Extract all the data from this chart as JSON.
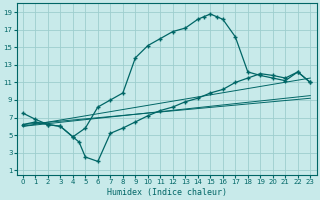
{
  "xlabel": "Humidex (Indice chaleur)",
  "bg_color": "#c8eaea",
  "grid_color": "#9ecece",
  "line_color": "#006666",
  "xlim": [
    -0.5,
    23.5
  ],
  "ylim": [
    0.5,
    20
  ],
  "xticks": [
    0,
    1,
    2,
    3,
    4,
    5,
    6,
    7,
    8,
    9,
    10,
    11,
    12,
    13,
    14,
    15,
    16,
    17,
    18,
    19,
    20,
    21,
    22,
    23
  ],
  "yticks": [
    1,
    3,
    5,
    7,
    9,
    11,
    13,
    15,
    17,
    19
  ],
  "curve1_x": [
    0,
    1,
    2,
    3,
    4,
    5,
    6,
    7,
    8,
    9,
    10,
    11,
    12,
    13,
    14,
    14.5,
    15,
    15.5,
    16,
    17,
    18,
    19,
    20,
    21,
    22,
    23
  ],
  "curve1_y": [
    7.5,
    6.8,
    6.2,
    6.0,
    4.8,
    5.8,
    8.2,
    9.0,
    9.8,
    13.8,
    15.2,
    16.0,
    16.8,
    17.2,
    18.2,
    18.5,
    18.8,
    18.5,
    18.2,
    16.2,
    12.2,
    11.8,
    11.5,
    11.2,
    12.2,
    11.0
  ],
  "curve2_x": [
    0,
    1,
    2,
    3,
    4,
    4.5,
    5,
    6,
    7,
    8,
    9,
    10,
    11,
    12,
    13,
    14,
    15,
    16,
    17,
    18,
    19,
    20,
    21,
    22,
    23
  ],
  "curve2_y": [
    6.2,
    6.5,
    6.2,
    6.0,
    4.8,
    4.2,
    2.5,
    2.0,
    5.2,
    5.8,
    6.5,
    7.2,
    7.8,
    8.2,
    8.8,
    9.2,
    9.8,
    10.2,
    11.0,
    11.5,
    12.0,
    11.8,
    11.5,
    12.2,
    11.0
  ],
  "line1_x": [
    0,
    23
  ],
  "line1_y": [
    6.0,
    9.5
  ],
  "line2_x": [
    0,
    23
  ],
  "line2_y": [
    6.0,
    11.5
  ],
  "line3_x": [
    0,
    23
  ],
  "line3_y": [
    6.2,
    9.2
  ]
}
